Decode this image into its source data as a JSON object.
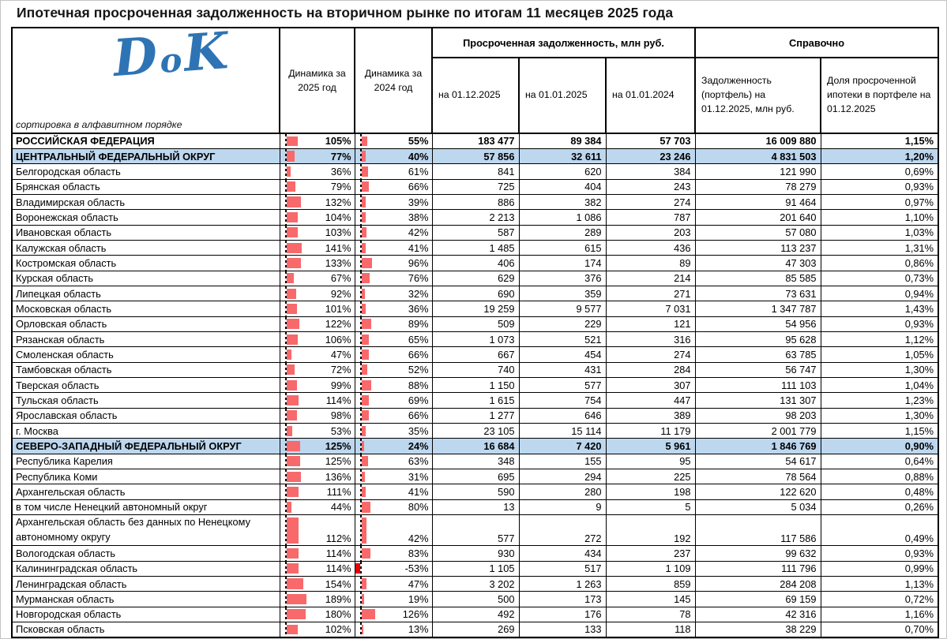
{
  "title": "Ипотечная просроченная задолженность на вторичном рынке по итогам 11 месяцев 2025 года",
  "logo": {
    "text": "DoK",
    "note": "сортировка в алфавитном порядке"
  },
  "colors": {
    "bar_positive": "#f8696b",
    "bar_negative": "#e60000",
    "district_row_bg": "#bdd7ee",
    "logo_blue": "#2e74b5"
  },
  "table": {
    "headers": {
      "dyn2025": "Динамика за 2025 год",
      "dyn2024": "Динамика за 2024 год",
      "group_overdue": "Просроченная задолженность, млн руб.",
      "group_ref": "Справочно",
      "on_2025_12": "на 01.12.2025",
      "on_2025_01": "на 01.01.2025",
      "on_2024_01": "на 01.01.2024",
      "portfolio": "Задолженность (портфель) на 01.12.2025, млн руб.",
      "share": "Доля просроченной ипотеки в портфеле на 01.12.2025"
    },
    "rows": [
      {
        "name": "РОССИЙСКАЯ ФЕДЕРАЦИЯ",
        "style": "federation",
        "dyn2025": 105,
        "dyn2024": 55,
        "v1": "183 477",
        "v2": "89 384",
        "v3": "57 703",
        "portfolio": "16 009 880",
        "share": "1,15%"
      },
      {
        "name": "ЦЕНТРАЛЬНЫЙ ФЕДЕРАЛЬНЫЙ ОКРУГ",
        "style": "district",
        "dyn2025": 77,
        "dyn2024": 40,
        "v1": "57 856",
        "v2": "32 611",
        "v3": "23 246",
        "portfolio": "4 831 503",
        "share": "1,20%"
      },
      {
        "name": "Белгородская область",
        "style": "region",
        "dyn2025": 36,
        "dyn2024": 61,
        "v1": "841",
        "v2": "620",
        "v3": "384",
        "portfolio": "121 990",
        "share": "0,69%"
      },
      {
        "name": "Брянская область",
        "style": "region",
        "dyn2025": 79,
        "dyn2024": 66,
        "v1": "725",
        "v2": "404",
        "v3": "243",
        "portfolio": "78 279",
        "share": "0,93%"
      },
      {
        "name": "Владимирская область",
        "style": "region",
        "dyn2025": 132,
        "dyn2024": 39,
        "v1": "886",
        "v2": "382",
        "v3": "274",
        "portfolio": "91 464",
        "share": "0,97%"
      },
      {
        "name": "Воронежская область",
        "style": "region",
        "dyn2025": 104,
        "dyn2024": 38,
        "v1": "2 213",
        "v2": "1 086",
        "v3": "787",
        "portfolio": "201 640",
        "share": "1,10%"
      },
      {
        "name": "Ивановская область",
        "style": "region",
        "dyn2025": 103,
        "dyn2024": 42,
        "v1": "587",
        "v2": "289",
        "v3": "203",
        "portfolio": "57 080",
        "share": "1,03%"
      },
      {
        "name": "Калужская область",
        "style": "region",
        "dyn2025": 141,
        "dyn2024": 41,
        "v1": "1 485",
        "v2": "615",
        "v3": "436",
        "portfolio": "113 237",
        "share": "1,31%"
      },
      {
        "name": "Костромская область",
        "style": "region",
        "dyn2025": 133,
        "dyn2024": 96,
        "v1": "406",
        "v2": "174",
        "v3": "89",
        "portfolio": "47 303",
        "share": "0,86%"
      },
      {
        "name": "Курская область",
        "style": "region",
        "dyn2025": 67,
        "dyn2024": 76,
        "v1": "629",
        "v2": "376",
        "v3": "214",
        "portfolio": "85 585",
        "share": "0,73%"
      },
      {
        "name": "Липецкая область",
        "style": "region",
        "dyn2025": 92,
        "dyn2024": 32,
        "v1": "690",
        "v2": "359",
        "v3": "271",
        "portfolio": "73 631",
        "share": "0,94%"
      },
      {
        "name": "Московская область",
        "style": "region",
        "dyn2025": 101,
        "dyn2024": 36,
        "v1": "19 259",
        "v2": "9 577",
        "v3": "7 031",
        "portfolio": "1 347 787",
        "share": "1,43%"
      },
      {
        "name": "Орловская область",
        "style": "region",
        "dyn2025": 122,
        "dyn2024": 89,
        "v1": "509",
        "v2": "229",
        "v3": "121",
        "portfolio": "54 956",
        "share": "0,93%"
      },
      {
        "name": "Рязанская область",
        "style": "region",
        "dyn2025": 106,
        "dyn2024": 65,
        "v1": "1 073",
        "v2": "521",
        "v3": "316",
        "portfolio": "95 628",
        "share": "1,12%"
      },
      {
        "name": "Смоленская область",
        "style": "region",
        "dyn2025": 47,
        "dyn2024": 66,
        "v1": "667",
        "v2": "454",
        "v3": "274",
        "portfolio": "63 785",
        "share": "1,05%"
      },
      {
        "name": "Тамбовская область",
        "style": "region",
        "dyn2025": 72,
        "dyn2024": 52,
        "v1": "740",
        "v2": "431",
        "v3": "284",
        "portfolio": "56 747",
        "share": "1,30%"
      },
      {
        "name": "Тверская область",
        "style": "region",
        "dyn2025": 99,
        "dyn2024": 88,
        "v1": "1 150",
        "v2": "577",
        "v3": "307",
        "portfolio": "111 103",
        "share": "1,04%"
      },
      {
        "name": "Тульская область",
        "style": "region",
        "dyn2025": 114,
        "dyn2024": 69,
        "v1": "1 615",
        "v2": "754",
        "v3": "447",
        "portfolio": "131 307",
        "share": "1,23%"
      },
      {
        "name": "Ярославская область",
        "style": "region",
        "dyn2025": 98,
        "dyn2024": 66,
        "v1": "1 277",
        "v2": "646",
        "v3": "389",
        "portfolio": "98 203",
        "share": "1,30%"
      },
      {
        "name": "г. Москва",
        "style": "region",
        "dyn2025": 53,
        "dyn2024": 35,
        "v1": "23 105",
        "v2": "15 114",
        "v3": "11 179",
        "portfolio": "2 001 779",
        "share": "1,15%"
      },
      {
        "name": "СЕВЕРО-ЗАПАДНЫЙ ФЕДЕРАЛЬНЫЙ ОКРУГ",
        "style": "district",
        "dyn2025": 125,
        "dyn2024": 24,
        "v1": "16 684",
        "v2": "7 420",
        "v3": "5 961",
        "portfolio": "1 846 769",
        "share": "0,90%"
      },
      {
        "name": "Республика Карелия",
        "style": "region",
        "dyn2025": 125,
        "dyn2024": 63,
        "v1": "348",
        "v2": "155",
        "v3": "95",
        "portfolio": "54 617",
        "share": "0,64%"
      },
      {
        "name": "Республика Коми",
        "style": "region",
        "dyn2025": 136,
        "dyn2024": 31,
        "v1": "695",
        "v2": "294",
        "v3": "225",
        "portfolio": "78 564",
        "share": "0,88%"
      },
      {
        "name": "Архангельская область",
        "style": "region",
        "dyn2025": 111,
        "dyn2024": 41,
        "v1": "590",
        "v2": "280",
        "v3": "198",
        "portfolio": "122 620",
        "share": "0,48%"
      },
      {
        "name": "в том числе Ненецкий автономный округ",
        "style": "region",
        "dyn2025": 44,
        "dyn2024": 80,
        "v1": "13",
        "v2": "9",
        "v3": "5",
        "portfolio": "5 034",
        "share": "0,26%"
      },
      {
        "name": "Архангельская область без данных по Ненецкому автономному округу",
        "style": "region",
        "tall": true,
        "dyn2025": 112,
        "dyn2024": 42,
        "v1": "577",
        "v2": "272",
        "v3": "192",
        "portfolio": "117 586",
        "share": "0,49%"
      },
      {
        "name": "Вологодская область",
        "style": "region",
        "dyn2025": 114,
        "dyn2024": 83,
        "v1": "930",
        "v2": "434",
        "v3": "237",
        "portfolio": "99 632",
        "share": "0,93%"
      },
      {
        "name": "Калининградская область",
        "style": "region",
        "dyn2025": 114,
        "dyn2024": -53,
        "v1": "1 105",
        "v2": "517",
        "v3": "1 109",
        "portfolio": "111 796",
        "share": "0,99%"
      },
      {
        "name": "Ленинградская область",
        "style": "region",
        "dyn2025": 154,
        "dyn2024": 47,
        "v1": "3 202",
        "v2": "1 263",
        "v3": "859",
        "portfolio": "284 208",
        "share": "1,13%"
      },
      {
        "name": "Мурманская область",
        "style": "region",
        "dyn2025": 189,
        "dyn2024": 19,
        "v1": "500",
        "v2": "173",
        "v3": "145",
        "portfolio": "69 159",
        "share": "0,72%"
      },
      {
        "name": "Новгородская область",
        "style": "region",
        "dyn2025": 180,
        "dyn2024": 126,
        "v1": "492",
        "v2": "176",
        "v3": "78",
        "portfolio": "42 316",
        "share": "1,16%"
      },
      {
        "name": "Псковская область",
        "style": "region",
        "dyn2025": 102,
        "dyn2024": 13,
        "v1": "269",
        "v2": "133",
        "v3": "118",
        "portfolio": "38 229",
        "share": "0,70%"
      }
    ]
  }
}
